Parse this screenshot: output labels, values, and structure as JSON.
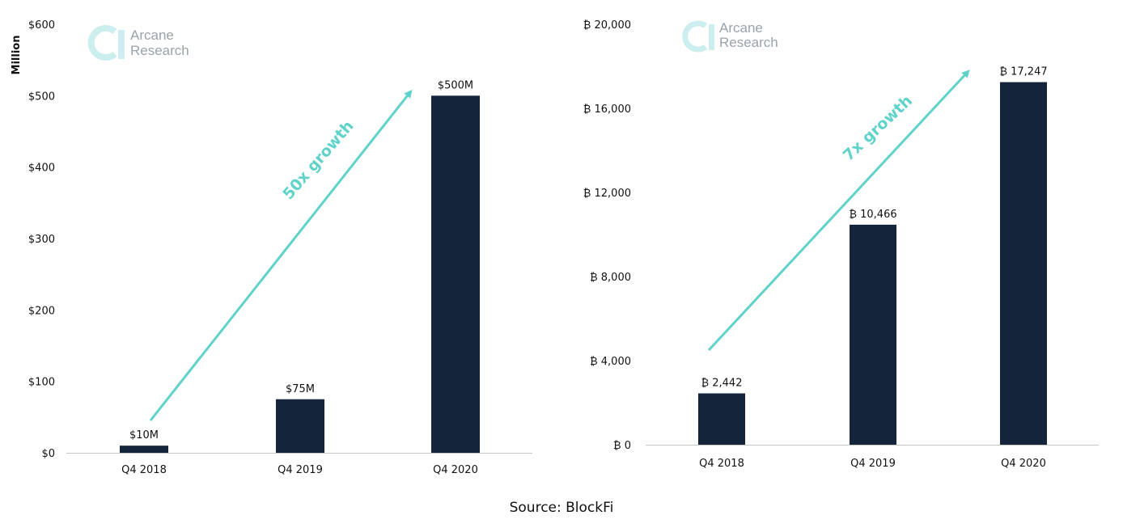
{
  "colors": {
    "bar": "#14243a",
    "accent": "#5fd3c9",
    "axis": "#c8c8c8",
    "logo": "#cdeeee"
  },
  "logo": {
    "line1": "Arcane",
    "line2": "Research",
    "icon": "arcane-logo-icon"
  },
  "source": "Source: BlockFi",
  "chart_data": [
    {
      "type": "bar",
      "ylabel": "Million",
      "categories": [
        "Q4 2018",
        "Q4 2019",
        "Q4 2020"
      ],
      "values": [
        10,
        75,
        500
      ],
      "data_labels": [
        "$10M",
        "$75M",
        "$500M"
      ],
      "ylim": [
        0,
        600
      ],
      "yticks": [
        0,
        100,
        200,
        300,
        400,
        500,
        600
      ],
      "ytick_labels": [
        "$0",
        "$100",
        "$200",
        "$300",
        "$400",
        "$500",
        "$600"
      ],
      "annotation": "50x growth",
      "grid": false
    },
    {
      "type": "bar",
      "ylabel": "",
      "categories": [
        "Q4 2018",
        "Q4 2019",
        "Q4 2020"
      ],
      "values": [
        2442,
        10466,
        17247
      ],
      "data_labels": [
        "₿ 2,442",
        "₿ 10,466",
        "₿ 17,247"
      ],
      "ylim": [
        0,
        20000
      ],
      "yticks": [
        0,
        4000,
        8000,
        12000,
        16000,
        20000
      ],
      "ytick_labels": [
        "₿ 0",
        "₿ 4,000",
        "₿ 8,000",
        "₿ 12,000",
        "₿ 16,000",
        "₿ 20,000"
      ],
      "annotation": "7x growth",
      "grid": false
    }
  ]
}
